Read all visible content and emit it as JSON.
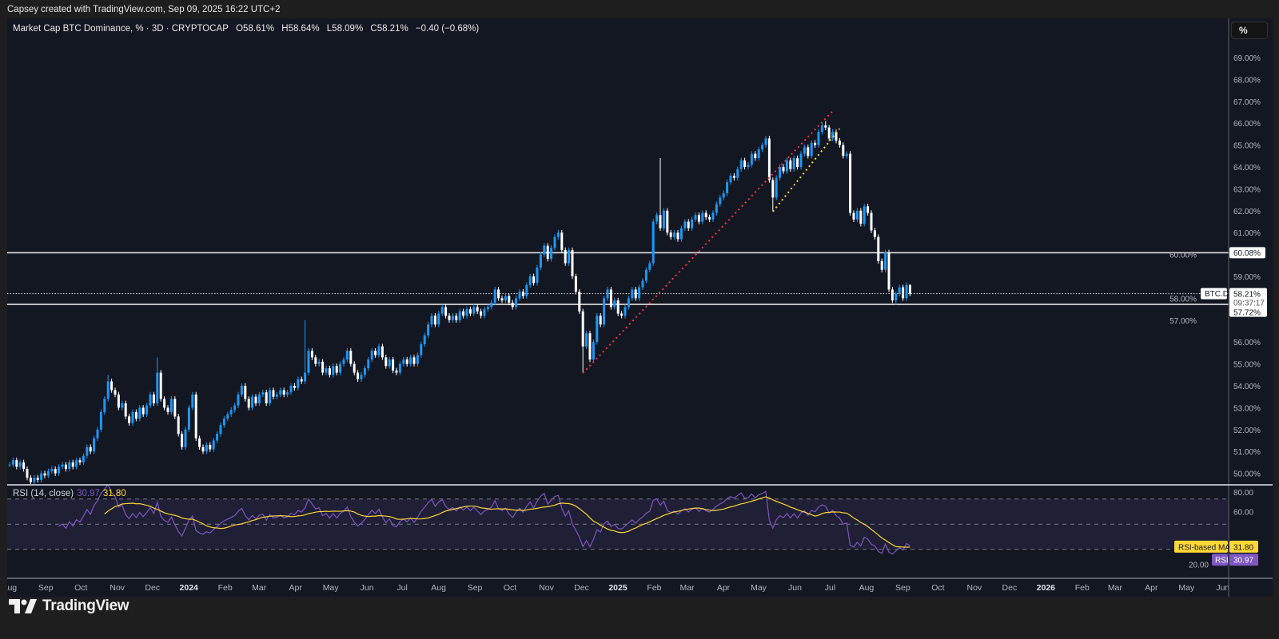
{
  "credit": "Capsey created with TradingView.com, Sep 09, 2025 16:22 UTC+2",
  "legend": {
    "symbol": "Market Cap BTC Dominance, % · 3D · CRYPTOCAP",
    "open": "O58.61%",
    "high": "H58.64%",
    "low": "L58.09%",
    "close": "C58.21%",
    "change": "−0.40 (−0.68%)"
  },
  "price_scale_unit": "%",
  "rsi_legend": {
    "label": "RSI (14, close)",
    "rsi": "30.97",
    "ma": "31.80"
  },
  "rsi_tags": {
    "ma_label": "RSI-based MA",
    "ma_value": "31.80",
    "rsi_label": "RSI",
    "rsi_value": "30.97"
  },
  "price_tags": {
    "upper_line": "60.08%",
    "symbol": "BTC.D",
    "last": "58.21%",
    "countdown": "09:37:17",
    "lower_line": "57.72%"
  },
  "brand": "TradingView",
  "colors": {
    "up": "#2196f3",
    "down": "#ffffff",
    "rsi": "#7e57c2",
    "rsi_ma": "#fdd835",
    "trend_red": "#f23645",
    "trend_yellow": "#fdd835",
    "background": "#131722"
  },
  "chart_data": {
    "type": "candlestick",
    "timeframe": "3D",
    "first_candle": "2023-08-01",
    "last_candle": "2025-09-07",
    "y_unit": "%",
    "ylim": [
      50,
      69
    ],
    "y_ticks": [
      "69.00%",
      "68.00%",
      "67.00%",
      "66.00%",
      "65.00%",
      "64.00%",
      "63.00%",
      "62.00%",
      "61.00%",
      "60.00%",
      "59.00%",
      "58.00%",
      "57.00%",
      "56.00%",
      "55.00%",
      "54.00%",
      "53.00%",
      "52.00%",
      "51.00%",
      "50.00%"
    ],
    "closes": [
      50.4,
      50.6,
      50.3,
      50.5,
      50.2,
      49.8,
      49.6,
      49.8,
      49.7,
      50.0,
      49.9,
      50.1,
      50.2,
      50.0,
      50.3,
      50.4,
      50.2,
      50.5,
      50.3,
      50.6,
      50.5,
      50.8,
      51.2,
      51.0,
      51.6,
      52.0,
      52.8,
      53.4,
      54.2,
      53.8,
      53.6,
      53.0,
      53.2,
      52.6,
      52.3,
      52.8,
      52.5,
      53.0,
      52.7,
      53.1,
      53.6,
      53.2,
      54.6,
      53.4,
      53.0,
      52.8,
      53.4,
      52.6,
      51.8,
      51.2,
      52.0,
      53.0,
      53.6,
      51.6,
      51.2,
      51.0,
      51.3,
      51.1,
      51.5,
      51.8,
      52.2,
      52.5,
      52.7,
      52.9,
      53.1,
      53.6,
      54.0,
      53.4,
      53.0,
      53.5,
      53.2,
      53.6,
      53.7,
      53.2,
      53.8,
      53.5,
      53.6,
      53.8,
      53.6,
      53.7,
      54.0,
      53.9,
      54.3,
      54.2,
      54.6,
      55.6,
      55.3,
      55.0,
      55.1,
      54.6,
      54.8,
      54.5,
      54.9,
      54.6,
      55.0,
      55.2,
      55.6,
      55.0,
      54.6,
      54.3,
      54.5,
      54.8,
      55.2,
      55.6,
      55.4,
      55.8,
      55.3,
      54.9,
      55.2,
      54.7,
      54.6,
      55.0,
      55.2,
      55.0,
      55.3,
      55.0,
      55.4,
      55.9,
      56.3,
      56.8,
      57.2,
      56.8,
      57.3,
      57.6,
      57.2,
      57.0,
      57.2,
      57.0,
      57.4,
      57.2,
      57.5,
      57.3,
      57.6,
      57.4,
      57.2,
      57.5,
      57.6,
      57.8,
      58.4,
      58.0,
      57.9,
      58.1,
      57.8,
      57.6,
      58.0,
      58.3,
      58.1,
      58.6,
      59.0,
      58.7,
      59.4,
      60.0,
      60.4,
      59.8,
      60.3,
      60.8,
      61.0,
      60.2,
      59.6,
      60.2,
      59.0,
      58.3,
      57.4,
      55.8,
      56.4,
      55.2,
      56.0,
      57.2,
      56.8,
      58.0,
      58.4,
      57.6,
      57.9,
      57.3,
      57.2,
      57.6,
      58.0,
      58.4,
      58.0,
      58.5,
      58.8,
      59.3,
      59.6,
      61.5,
      61.8,
      61.2,
      62.0,
      61.0,
      60.8,
      61.0,
      60.7,
      61.2,
      61.5,
      61.2,
      61.6,
      61.8,
      61.5,
      61.9,
      61.7,
      61.6,
      61.9,
      62.3,
      62.6,
      62.8,
      63.3,
      63.6,
      63.5,
      63.9,
      64.3,
      64.0,
      64.1,
      64.6,
      64.4,
      64.8,
      65.0,
      65.3,
      63.4,
      62.6,
      63.5,
      64.0,
      63.8,
      64.3,
      63.9,
      64.4,
      64.0,
      64.6,
      64.9,
      64.5,
      65.1,
      65.0,
      65.6,
      65.9,
      65.8,
      65.3,
      65.6,
      65.2,
      65.0,
      64.5,
      64.6,
      61.9,
      61.6,
      62.0,
      61.4,
      62.2,
      61.9,
      61.1,
      60.8,
      59.7,
      59.3,
      60.1,
      58.4,
      57.9,
      58.2,
      58.5,
      58.0,
      58.61,
      58.21
    ],
    "wick_extremes": [
      {
        "i": 28,
        "high": 54.5
      },
      {
        "i": 42,
        "high": 55.3
      },
      {
        "i": 84,
        "high": 57.0
      },
      {
        "i": 163,
        "low": 54.6
      },
      {
        "i": 185,
        "high": 64.4
      },
      {
        "i": 217,
        "low": 62.0
      },
      {
        "i": 232,
        "high": 66.1
      },
      {
        "i": 252,
        "low": 57.7
      },
      {
        "i": 256,
        "high": 58.64,
        "low": 58.09
      }
    ],
    "horizontal_levels": [
      60.08,
      57.72
    ],
    "last_price": 58.21,
    "trendlines": [
      {
        "color": "red",
        "style": "dotted",
        "from": {
          "i": 163,
          "price": 54.58
        },
        "to": {
          "i": 234,
          "price": 66.55
        }
      },
      {
        "color": "yellow",
        "style": "dotted",
        "from": {
          "i": 217,
          "price": 61.96
        },
        "to": {
          "i": 236,
          "price": 65.75
        }
      }
    ],
    "x_ticks": [
      {
        "label": "Aug",
        "date": "2023-08-01"
      },
      {
        "label": "Sep",
        "date": "2023-09-01"
      },
      {
        "label": "Oct",
        "date": "2023-10-01"
      },
      {
        "label": "Nov",
        "date": "2023-11-01"
      },
      {
        "label": "Dec",
        "date": "2023-12-01"
      },
      {
        "label": "2024",
        "date": "2024-01-01",
        "bold": true
      },
      {
        "label": "Feb",
        "date": "2024-02-01"
      },
      {
        "label": "Mar",
        "date": "2024-03-01"
      },
      {
        "label": "Apr",
        "date": "2024-04-01"
      },
      {
        "label": "May",
        "date": "2024-05-01"
      },
      {
        "label": "Jun",
        "date": "2024-06-01"
      },
      {
        "label": "Jul",
        "date": "2024-07-01"
      },
      {
        "label": "Aug",
        "date": "2024-08-01"
      },
      {
        "label": "Sep",
        "date": "2024-09-01"
      },
      {
        "label": "Oct",
        "date": "2024-10-01"
      },
      {
        "label": "Nov",
        "date": "2024-11-01"
      },
      {
        "label": "Dec",
        "date": "2024-12-01"
      },
      {
        "label": "2025",
        "date": "2025-01-01",
        "bold": true
      },
      {
        "label": "Feb",
        "date": "2025-02-01"
      },
      {
        "label": "Mar",
        "date": "2025-03-01"
      },
      {
        "label": "Apr",
        "date": "2025-04-01"
      },
      {
        "label": "May",
        "date": "2025-05-01"
      },
      {
        "label": "Jun",
        "date": "2025-06-01"
      },
      {
        "label": "Jul",
        "date": "2025-07-01"
      },
      {
        "label": "Aug",
        "date": "2025-08-01"
      },
      {
        "label": "Sep",
        "date": "2025-09-01"
      },
      {
        "label": "Oct",
        "date": "2025-10-01"
      },
      {
        "label": "Nov",
        "date": "2025-11-01"
      },
      {
        "label": "Dec",
        "date": "2025-12-01"
      },
      {
        "label": "2026",
        "date": "2026-01-01",
        "bold": true
      },
      {
        "label": "Feb",
        "date": "2026-02-01"
      },
      {
        "label": "Mar",
        "date": "2026-03-01"
      },
      {
        "label": "Apr",
        "date": "2026-04-01"
      },
      {
        "label": "May",
        "date": "2026-05-01"
      },
      {
        "label": "Jun",
        "date": "2026-06-01"
      }
    ],
    "rsi": {
      "period": 14,
      "ma_period": 14,
      "ylim": [
        10,
        80
      ],
      "bands": [
        70,
        50,
        30
      ],
      "y_ticks": [
        "80.00",
        "60.00",
        "20.00"
      ],
      "last_rsi": 30.97,
      "last_ma": 31.8
    }
  }
}
